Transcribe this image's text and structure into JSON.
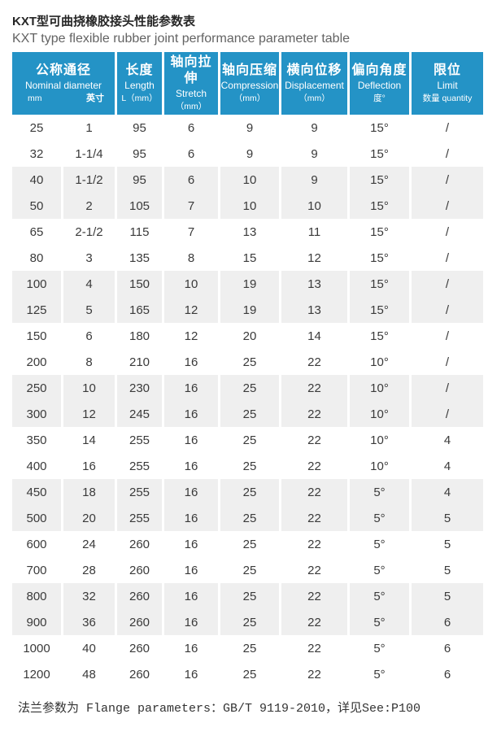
{
  "page": {
    "title_zh": "KXT型可曲挠橡胶接头性能参数表",
    "title_en": "KXT type flexible rubber joint performance parameter table",
    "footer": "法兰参数为 Flange parameters：GB/T 9119-2010，详见See:P100"
  },
  "colors": {
    "header_blue": "#2493c6",
    "row_gray": "#efefef",
    "title_dark": "#262626",
    "subtitle_gray": "#636363",
    "cell_text": "#3a3a3a"
  },
  "table": {
    "columns": [
      {
        "zh": "公称通径",
        "en": "Nominal diameter",
        "unit_left": "mm",
        "unit_right": "英寸"
      },
      {
        "zh": "长度",
        "en": "Length",
        "unit": "L（mm）"
      },
      {
        "zh": "轴向拉伸",
        "en": "Stretch",
        "unit": "（mm）"
      },
      {
        "zh": "轴向压缩",
        "en": "Compression",
        "unit": "（mm）"
      },
      {
        "zh": "横向位移",
        "en": "Displacement",
        "unit": "（mm）"
      },
      {
        "zh": "偏向角度",
        "en": "Deflection",
        "unit": "度°"
      },
      {
        "zh": "限位",
        "en": "Limit",
        "unit": "数量 quantity"
      }
    ],
    "rows": [
      [
        "25",
        "1",
        "95",
        "6",
        "9",
        "9",
        "15°",
        "/"
      ],
      [
        "32",
        "1-1/4",
        "95",
        "6",
        "9",
        "9",
        "15°",
        "/"
      ],
      [
        "40",
        "1-1/2",
        "95",
        "6",
        "10",
        "9",
        "15°",
        "/"
      ],
      [
        "50",
        "2",
        "105",
        "7",
        "10",
        "10",
        "15°",
        "/"
      ],
      [
        "65",
        "2-1/2",
        "115",
        "7",
        "13",
        "11",
        "15°",
        "/"
      ],
      [
        "80",
        "3",
        "135",
        "8",
        "15",
        "12",
        "15°",
        "/"
      ],
      [
        "100",
        "4",
        "150",
        "10",
        "19",
        "13",
        "15°",
        "/"
      ],
      [
        "125",
        "5",
        "165",
        "12",
        "19",
        "13",
        "15°",
        "/"
      ],
      [
        "150",
        "6",
        "180",
        "12",
        "20",
        "14",
        "15°",
        "/"
      ],
      [
        "200",
        "8",
        "210",
        "16",
        "25",
        "22",
        "10°",
        "/"
      ],
      [
        "250",
        "10",
        "230",
        "16",
        "25",
        "22",
        "10°",
        "/"
      ],
      [
        "300",
        "12",
        "245",
        "16",
        "25",
        "22",
        "10°",
        "/"
      ],
      [
        "350",
        "14",
        "255",
        "16",
        "25",
        "22",
        "10°",
        "4"
      ],
      [
        "400",
        "16",
        "255",
        "16",
        "25",
        "22",
        "10°",
        "4"
      ],
      [
        "450",
        "18",
        "255",
        "16",
        "25",
        "22",
        "5°",
        "4"
      ],
      [
        "500",
        "20",
        "255",
        "16",
        "25",
        "22",
        "5°",
        "5"
      ],
      [
        "600",
        "24",
        "260",
        "16",
        "25",
        "22",
        "5°",
        "5"
      ],
      [
        "700",
        "28",
        "260",
        "16",
        "25",
        "22",
        "5°",
        "5"
      ],
      [
        "800",
        "32",
        "260",
        "16",
        "25",
        "22",
        "5°",
        "5"
      ],
      [
        "900",
        "36",
        "260",
        "16",
        "25",
        "22",
        "5°",
        "6"
      ],
      [
        "1000",
        "40",
        "260",
        "16",
        "25",
        "22",
        "5°",
        "6"
      ],
      [
        "1200",
        "48",
        "260",
        "16",
        "25",
        "22",
        "5°",
        "6"
      ]
    ]
  }
}
